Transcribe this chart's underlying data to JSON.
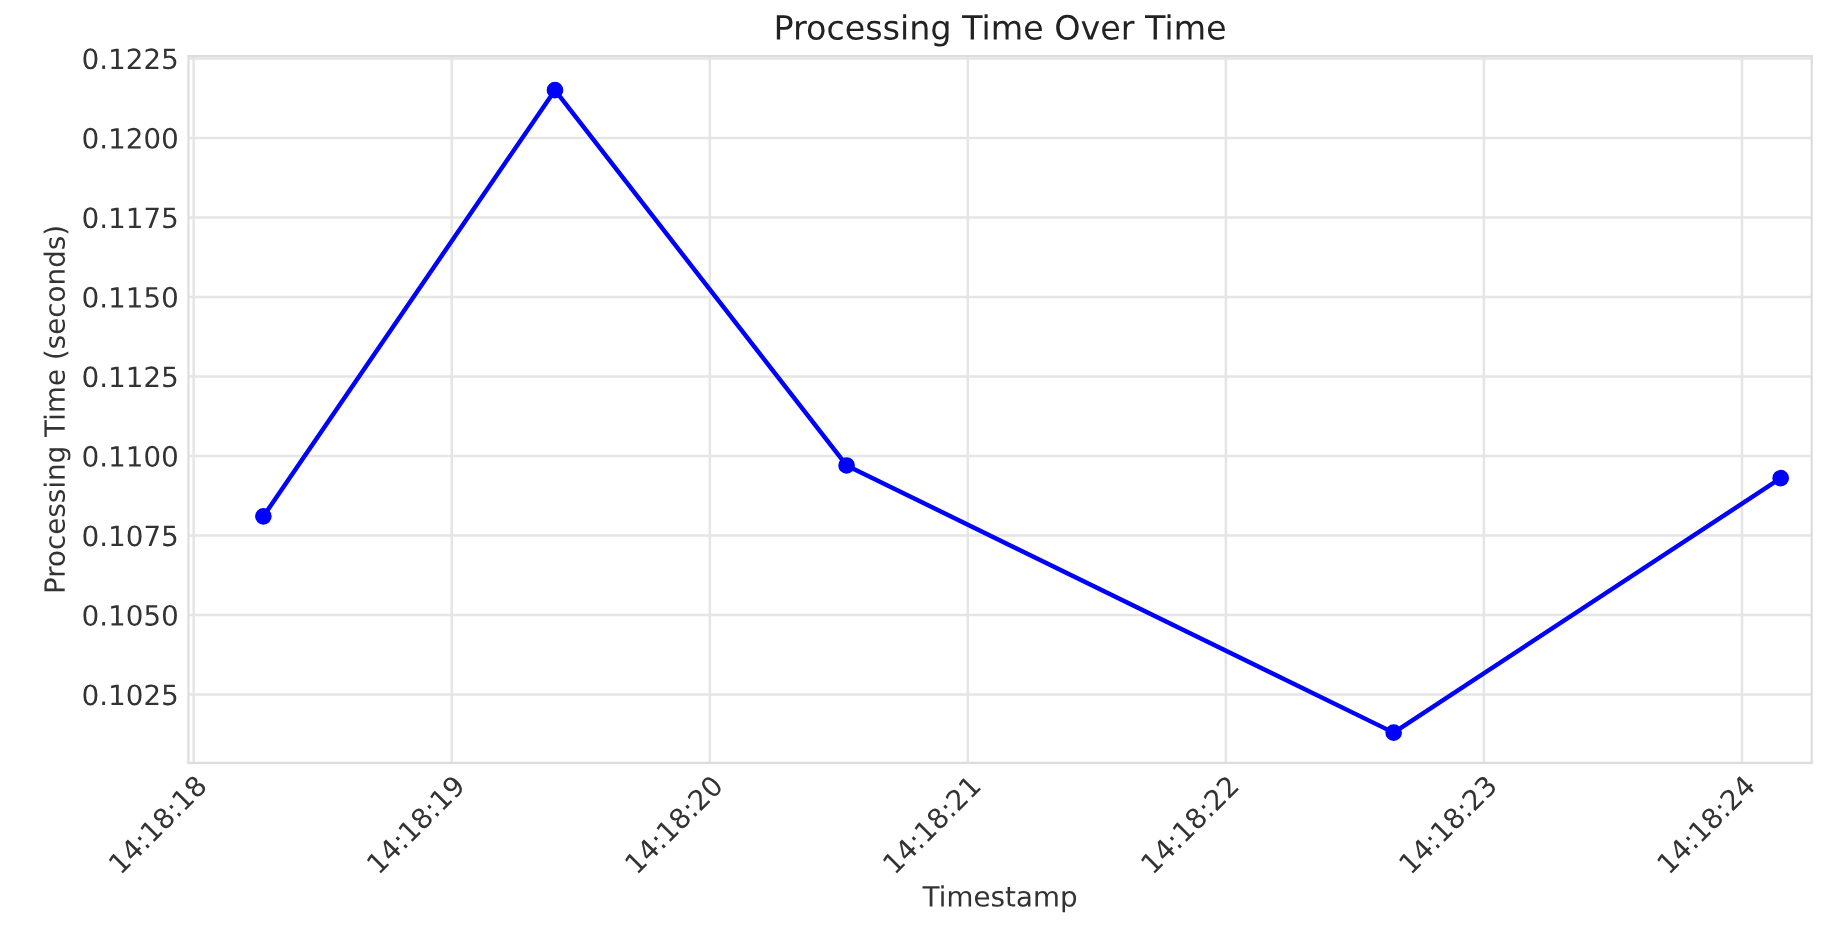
{
  "chart_data": {
    "type": "line",
    "title": "Processing Time Over Time",
    "xlabel": "Timestamp",
    "ylabel": "Processing Time (seconds)",
    "x": [
      14.305075,
      14.3053889,
      14.3057028,
      14.3062917,
      14.3067083
    ],
    "series": [
      {
        "color": "#0000ff",
        "values": [
          0.1081,
          0.1215,
          0.1097,
          0.1013,
          0.1093
        ]
      }
    ],
    "xlim": [
      14.3049944,
      14.3067417
    ],
    "xticks": [
      {
        "value": 14.305,
        "label": "14:18:18"
      },
      {
        "value": 14.3052778,
        "label": "14:18:19"
      },
      {
        "value": 14.3055556,
        "label": "14:18:20"
      },
      {
        "value": 14.3058333,
        "label": "14:18:21"
      },
      {
        "value": 14.3061111,
        "label": "14:18:22"
      },
      {
        "value": 14.3063889,
        "label": "14:18:23"
      },
      {
        "value": 14.3066667,
        "label": "14:18:24"
      }
    ],
    "ylim": [
      0.10035,
      0.12257
    ],
    "yticks": [
      {
        "value": 0.1025,
        "label": "0.1025"
      },
      {
        "value": 0.105,
        "label": "0.1050"
      },
      {
        "value": 0.1075,
        "label": "0.1075"
      },
      {
        "value": 0.11,
        "label": "0.1100"
      },
      {
        "value": 0.1125,
        "label": "0.1125"
      },
      {
        "value": 0.115,
        "label": "0.1150"
      },
      {
        "value": 0.1175,
        "label": "0.1175"
      },
      {
        "value": 0.12,
        "label": "0.1200"
      },
      {
        "value": 0.1225,
        "label": "0.1225"
      }
    ],
    "grid": true,
    "marker": "circle",
    "line_style": "solid",
    "legend": false
  }
}
